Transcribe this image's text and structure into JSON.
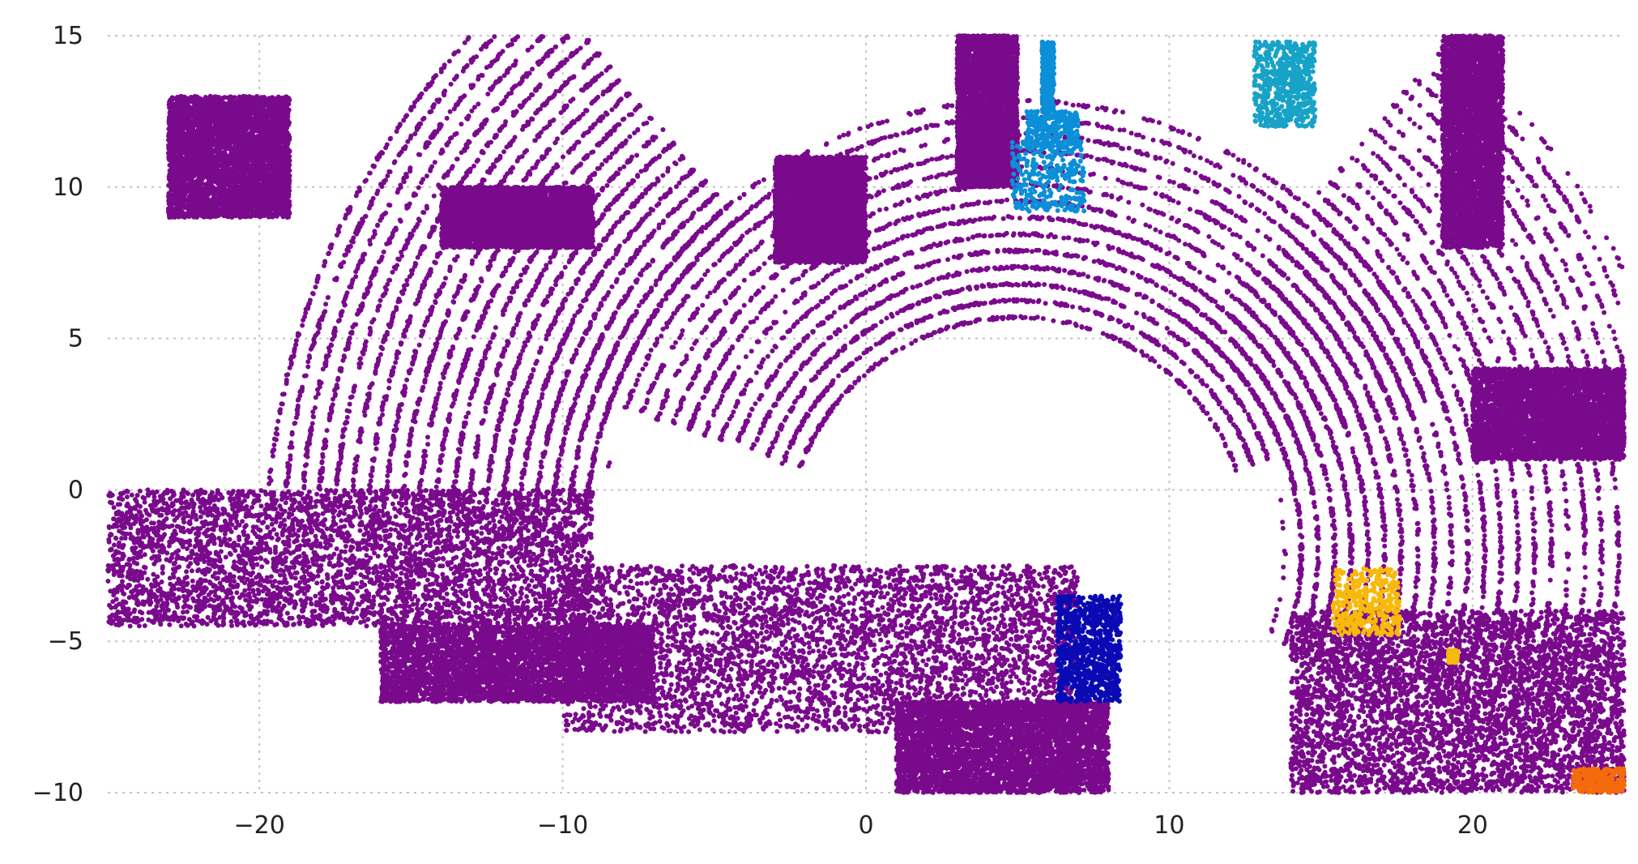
{
  "chart_data": {
    "type": "scatter",
    "title": "",
    "xlabel": "",
    "ylabel": "",
    "xlim": [
      -25,
      25
    ],
    "ylim": [
      -10,
      15
    ],
    "grid": true,
    "x_ticks": [
      {
        "value": -20,
        "label": "−20"
      },
      {
        "value": -10,
        "label": "−10"
      },
      {
        "value": 0,
        "label": "0"
      },
      {
        "value": 10,
        "label": "10"
      },
      {
        "value": 20,
        "label": "20"
      }
    ],
    "y_ticks": [
      {
        "value": 15,
        "label": "15"
      },
      {
        "value": 10,
        "label": "10"
      },
      {
        "value": 5,
        "label": "5"
      },
      {
        "value": 0,
        "label": "0"
      },
      {
        "value": -5,
        "label": "−5"
      },
      {
        "value": -10,
        "label": "−10"
      }
    ],
    "colors": {
      "background": "#7a0a8c",
      "car_front_right": "#0b8fd8",
      "car_top_right": "#17a3c7",
      "car_near_ego": "#0a0ab4",
      "object_right": "#f7b90a",
      "object_bottom_right": "#f56a0a"
    },
    "series": [
      {
        "key": "background",
        "approx_point_count": 60000,
        "regions": [
          {
            "shape": "annulus",
            "cx": 5,
            "cy": -2,
            "r0": 7.5,
            "r1": 15,
            "a0": 20,
            "a1": 160
          },
          {
            "shape": "annulus",
            "cx": 5,
            "cy": -2,
            "r0": 14,
            "r1": 25,
            "a0": 130,
            "a1": 175
          },
          {
            "shape": "annulus",
            "cx": 5,
            "cy": -2,
            "r0": 9,
            "r1": 22,
            "a0": -20,
            "a1": 50
          },
          {
            "shape": "rect",
            "x": [
              -25,
              -9
            ],
            "y": [
              -4.5,
              0
            ]
          },
          {
            "shape": "rect",
            "x": [
              -10,
              7
            ],
            "y": [
              -8,
              -2.5
            ]
          },
          {
            "shape": "rect",
            "x": [
              -16,
              -7
            ],
            "y": [
              -7,
              -4.5
            ]
          },
          {
            "shape": "rect",
            "x": [
              1,
              8
            ],
            "y": [
              -10,
              -7
            ]
          },
          {
            "shape": "rect",
            "x": [
              14,
              25
            ],
            "y": [
              -10,
              -4
            ]
          },
          {
            "shape": "rect",
            "x": [
              -23,
              -19
            ],
            "y": [
              9,
              13
            ]
          },
          {
            "shape": "rect",
            "x": [
              -14,
              -9
            ],
            "y": [
              8,
              10
            ]
          },
          {
            "shape": "rect",
            "x": [
              -3,
              0
            ],
            "y": [
              7.5,
              11
            ]
          },
          {
            "shape": "rect",
            "x": [
              3,
              5
            ],
            "y": [
              10,
              15
            ]
          },
          {
            "shape": "rect",
            "x": [
              19,
              21
            ],
            "y": [
              8,
              15
            ]
          },
          {
            "shape": "rect",
            "x": [
              20,
              25
            ],
            "y": [
              1,
              4
            ]
          }
        ]
      },
      {
        "key": "car_front_right",
        "approx_point_count": 900,
        "regions": [
          {
            "shape": "rect",
            "x": [
              4.8,
              7.2
            ],
            "y": [
              9.2,
              11.5
            ]
          },
          {
            "shape": "rect",
            "x": [
              5.3,
              7
            ],
            "y": [
              11.3,
              12.5
            ]
          },
          {
            "shape": "rect",
            "x": [
              5.8,
              6.2
            ],
            "y": [
              12.5,
              14.8
            ]
          }
        ]
      },
      {
        "key": "car_top_right",
        "approx_point_count": 600,
        "regions": [
          {
            "shape": "rect",
            "x": [
              12.8,
              14.8
            ],
            "y": [
              12,
              14.8
            ]
          }
        ]
      },
      {
        "key": "car_near_ego",
        "approx_point_count": 900,
        "regions": [
          {
            "shape": "rect",
            "x": [
              6.3,
              8.4
            ],
            "y": [
              -7,
              -3.5
            ]
          }
        ]
      },
      {
        "key": "object_right",
        "approx_point_count": 700,
        "regions": [
          {
            "shape": "rect",
            "x": [
              15.4,
              17.6
            ],
            "y": [
              -4.8,
              -2.6
            ]
          },
          {
            "shape": "rect",
            "x": [
              19.2,
              19.5
            ],
            "y": [
              -5.7,
              -5.3
            ]
          }
        ]
      },
      {
        "key": "object_bottom_right",
        "approx_point_count": 250,
        "regions": [
          {
            "shape": "rect",
            "x": [
              23.3,
              25
            ],
            "y": [
              -10,
              -9.2
            ]
          }
        ]
      }
    ]
  }
}
